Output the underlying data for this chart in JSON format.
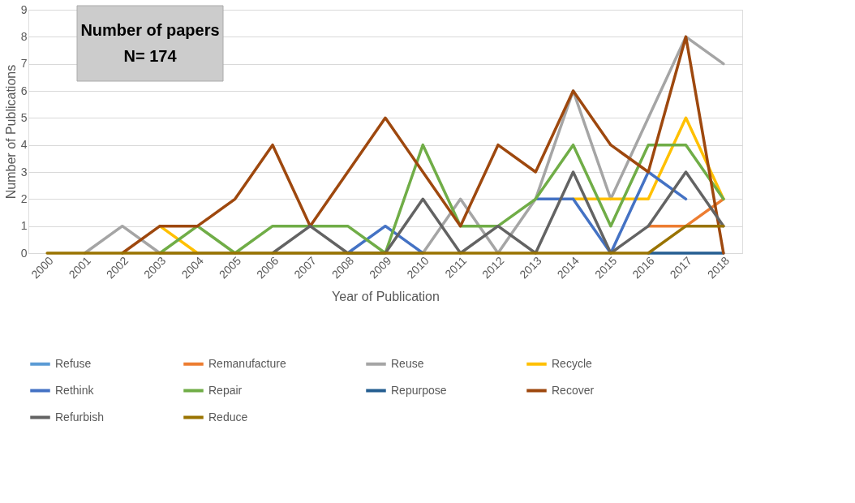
{
  "chart_data": {
    "type": "line",
    "xlabel": "Year of Publication",
    "ylabel": "Number of Publications",
    "categories": [
      "2000",
      "2001",
      "2002",
      "2003",
      "2004",
      "2005",
      "2006",
      "2007",
      "2008",
      "2009",
      "2010",
      "2011",
      "2012",
      "2013",
      "2014",
      "2015",
      "2016",
      "2017",
      "2018"
    ],
    "ylim": [
      0,
      9
    ],
    "yticks": [
      0,
      1,
      2,
      3,
      4,
      5,
      6,
      7,
      8,
      9
    ],
    "grid": "y",
    "legend": "bottom",
    "marker": "none",
    "line_style": "solid",
    "annotations": [
      "Number of papers\nN= 174"
    ],
    "series": [
      {
        "name": "Refuse",
        "color": "#5b9bd5",
        "values": [
          null,
          null,
          null,
          null,
          null,
          null,
          null,
          null,
          null,
          null,
          null,
          null,
          null,
          null,
          null,
          null,
          null,
          null,
          null
        ]
      },
      {
        "name": "Remanufacture",
        "color": "#ed7d31",
        "values": [
          null,
          null,
          null,
          null,
          null,
          null,
          null,
          null,
          null,
          null,
          null,
          null,
          null,
          null,
          null,
          null,
          1,
          1,
          2
        ]
      },
      {
        "name": "Reuse",
        "color": "#a5a5a5",
        "values": [
          null,
          0,
          1,
          0,
          0,
          0,
          0,
          0,
          0,
          0,
          0,
          2,
          0,
          2,
          6,
          2,
          5,
          8,
          7
        ]
      },
      {
        "name": "Recycle",
        "color": "#ffc000",
        "values": [
          null,
          null,
          null,
          1,
          0,
          null,
          null,
          null,
          null,
          null,
          null,
          null,
          null,
          null,
          2,
          2,
          2,
          5,
          2
        ]
      },
      {
        "name": "Rethink",
        "color": "#4472c4",
        "values": [
          null,
          null,
          null,
          null,
          null,
          null,
          null,
          null,
          0,
          1,
          0,
          null,
          null,
          2,
          2,
          0,
          3,
          2,
          null
        ]
      },
      {
        "name": "Repair",
        "color": "#70ad47",
        "values": [
          null,
          null,
          null,
          0,
          1,
          0,
          1,
          1,
          1,
          0,
          4,
          1,
          1,
          2,
          4,
          1,
          4,
          4,
          2
        ]
      },
      {
        "name": "Repurpose",
        "color": "#255e91",
        "values": [
          null,
          null,
          null,
          null,
          null,
          null,
          null,
          null,
          null,
          null,
          null,
          null,
          null,
          null,
          null,
          null,
          0,
          0,
          0
        ]
      },
      {
        "name": "Recover",
        "color": "#9e480e",
        "values": [
          null,
          null,
          0,
          1,
          1,
          2,
          4,
          1,
          3,
          5,
          3,
          1,
          4,
          3,
          6,
          4,
          3,
          8,
          0
        ]
      },
      {
        "name": "Refurbish",
        "color": "#636363",
        "values": [
          null,
          null,
          null,
          null,
          null,
          null,
          0,
          1,
          0,
          0,
          2,
          0,
          1,
          0,
          3,
          0,
          1,
          3,
          1
        ]
      },
      {
        "name": "Reduce",
        "color": "#997300",
        "values": [
          0,
          0,
          0,
          0,
          0,
          0,
          0,
          0,
          0,
          0,
          0,
          0,
          0,
          0,
          0,
          0,
          0,
          1,
          1
        ]
      }
    ]
  }
}
